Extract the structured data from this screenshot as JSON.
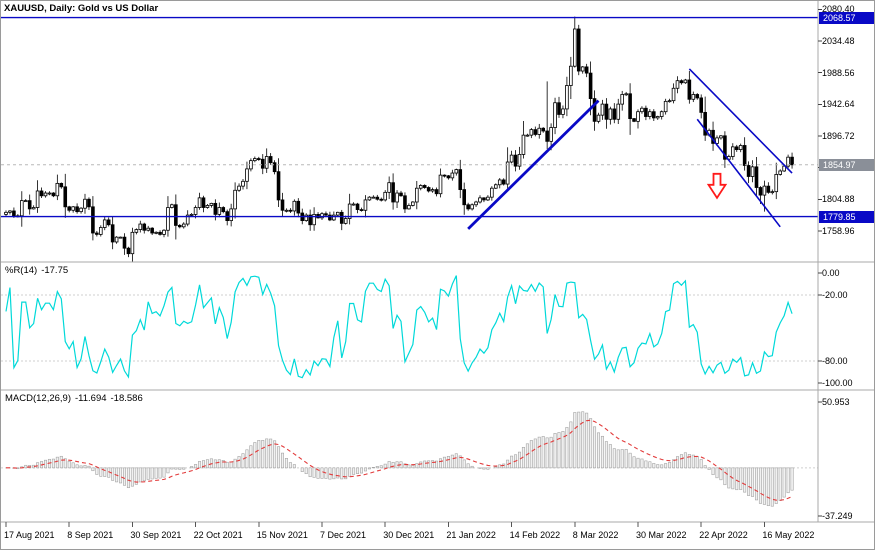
{
  "window": {
    "title": "XAUUSD, Daily: Gold vs US Dollar"
  },
  "colors": {
    "blue": "#0909c6",
    "gray_badge": "#8a8f98",
    "cyan": "#00d9d9",
    "red": "#ff1a1a",
    "signal": "#e23b3b",
    "hist_stroke": "#a3a3a3",
    "hist_fill": "#f1f1f1",
    "grid": "#cfcfcf",
    "bid": "#b8b8b8",
    "separator": "#a8a8a8"
  },
  "main_panel": {
    "price_ticks": [
      "2080.40",
      "2034.48",
      "1988.56",
      "1942.64",
      "1896.72",
      "1850.80",
      "1804.88",
      "1758.96"
    ],
    "badges": [
      {
        "name": "resistance-price-badge",
        "text": "2068.57",
        "price": 2068.57,
        "color_key": "blue"
      },
      {
        "name": "current-price-badge",
        "text": "1854.97",
        "price": 1854.97,
        "color_key": "gray_badge"
      },
      {
        "name": "support-price-badge",
        "text": "1779.85",
        "price": 1779.85,
        "color_key": "blue"
      }
    ]
  },
  "indicators": {
    "wpr": {
      "name": "%R(14)",
      "value": "-17.75"
    },
    "macd": {
      "name": "MACD(12,26,9)",
      "value_main": "-11.694",
      "value_signal": "-18.586"
    }
  },
  "chart_data": {
    "type": "candlestick",
    "symbol": "XAUUSD",
    "timeframe": "Daily",
    "description": "Gold vs US Dollar",
    "title": "XAUUSD, Daily: Gold vs US Dollar",
    "x_labels": [
      "17 Aug 2021",
      "8 Sep 2021",
      "30 Sep 2021",
      "22 Oct 2021",
      "15 Nov 2021",
      "7 Dec 2021",
      "30 Dec 2021",
      "21 Jan 2022",
      "14 Feb 2022",
      "8 Mar 2022",
      "30 Mar 2022",
      "22 Apr 2022",
      "16 May 2022"
    ],
    "x_label_days": [
      0,
      16,
      32,
      48,
      64,
      80,
      96,
      112,
      128,
      144,
      160,
      176,
      192
    ],
    "price_axis": {
      "min": 1727,
      "max": 2081,
      "tick_step": 45.92,
      "ticks": [
        2080.4,
        2034.48,
        1988.56,
        1942.64,
        1896.72,
        1850.8,
        1804.88,
        1758.96
      ]
    },
    "current_price": 1854.97,
    "levels": {
      "resistance": 2068.57,
      "support": 1779.85
    },
    "candles": {
      "closes": [
        1786,
        1788,
        1780,
        1781,
        1803,
        1803,
        1791,
        1793,
        1817,
        1810,
        1814,
        1814,
        1810,
        1828,
        1823,
        1794,
        1789,
        1794,
        1787,
        1792,
        1805,
        1794,
        1756,
        1754,
        1764,
        1775,
        1768,
        1743,
        1750,
        1750,
        1734,
        1726,
        1757,
        1761,
        1769,
        1760,
        1763,
        1756,
        1757,
        1754,
        1760,
        1793,
        1797,
        1767,
        1765,
        1769,
        1782,
        1783,
        1793,
        1807,
        1793,
        1796,
        1799,
        1783,
        1793,
        1787,
        1774,
        1791,
        1818,
        1824,
        1831,
        1849,
        1861,
        1864,
        1863,
        1850,
        1867,
        1858,
        1845,
        1804,
        1789,
        1789,
        1788,
        1802,
        1785,
        1774,
        1782,
        1768,
        1783,
        1778,
        1784,
        1782,
        1775,
        1782,
        1786,
        1770,
        1777,
        1798,
        1798,
        1790,
        1789,
        1804,
        1808,
        1808,
        1805,
        1804,
        1815,
        1829,
        1801,
        1814,
        1810,
        1791,
        1796,
        1801,
        1821,
        1825,
        1822,
        1817,
        1819,
        1813,
        1840,
        1839,
        1836,
        1843,
        1848,
        1819,
        1797,
        1791,
        1797,
        1801,
        1807,
        1804,
        1808,
        1821,
        1826,
        1833,
        1827,
        1859,
        1869,
        1853,
        1870,
        1898,
        1898,
        1906,
        1899,
        1908,
        1904,
        1889,
        1909,
        1945,
        1928,
        1936,
        1970,
        1998,
        2052,
        1991,
        1997,
        1988,
        1951,
        1918,
        1927,
        1943,
        1921,
        1936,
        1921,
        1943,
        1957,
        1958,
        1922,
        1918,
        1932,
        1937,
        1925,
        1932,
        1923,
        1925,
        1932,
        1947,
        1948,
        1966,
        1977,
        1974,
        1978,
        1950,
        1957,
        1952,
        1931,
        1898,
        1905,
        1886,
        1894,
        1897,
        1863,
        1867,
        1881,
        1877,
        1883,
        1854,
        1838,
        1852,
        1822,
        1811,
        1824,
        1815,
        1816,
        1841,
        1846,
        1853,
        1866,
        1854.97
      ],
      "wick_overrides": {
        "31": [
          1736,
          1721
        ],
        "137": [
          1976,
          1878
        ],
        "144": [
          2070,
          1996
        ],
        "145": [
          2058,
          1985
        ],
        "191": [
          1824,
          1798
        ],
        "192": [
          1832,
          1787
        ]
      }
    },
    "drawings": {
      "trendline_up": {
        "from": [
          117,
          1762
        ],
        "to": [
          150,
          1948
        ]
      },
      "channel_upper": {
        "from": [
          173,
          1994
        ],
        "to": [
          199,
          1843
        ]
      },
      "channel_lower": {
        "from": [
          175,
          1921
        ],
        "to": [
          196,
          1765
        ]
      },
      "sell_arrow": {
        "day": 180,
        "price": 1823
      }
    },
    "wpr": {
      "period": 14,
      "current": -17.75,
      "levels": [
        -20,
        -80
      ],
      "axis": [
        {
          "text": "0.00",
          "value": 0
        },
        {
          "text": "-20.00",
          "value": -20
        },
        {
          "text": "-80.00",
          "value": -80
        },
        {
          "text": "-100.00",
          "value": -100
        }
      ],
      "range": [
        0,
        -100
      ]
    },
    "macd": {
      "fast": 12,
      "slow": 26,
      "signal_period": 9,
      "current_main": -11.694,
      "current_signal": -18.586,
      "axis": [
        {
          "text": "50.953",
          "value": 50.953
        },
        {
          "text": "-37.249",
          "value": -37.249
        }
      ]
    }
  }
}
